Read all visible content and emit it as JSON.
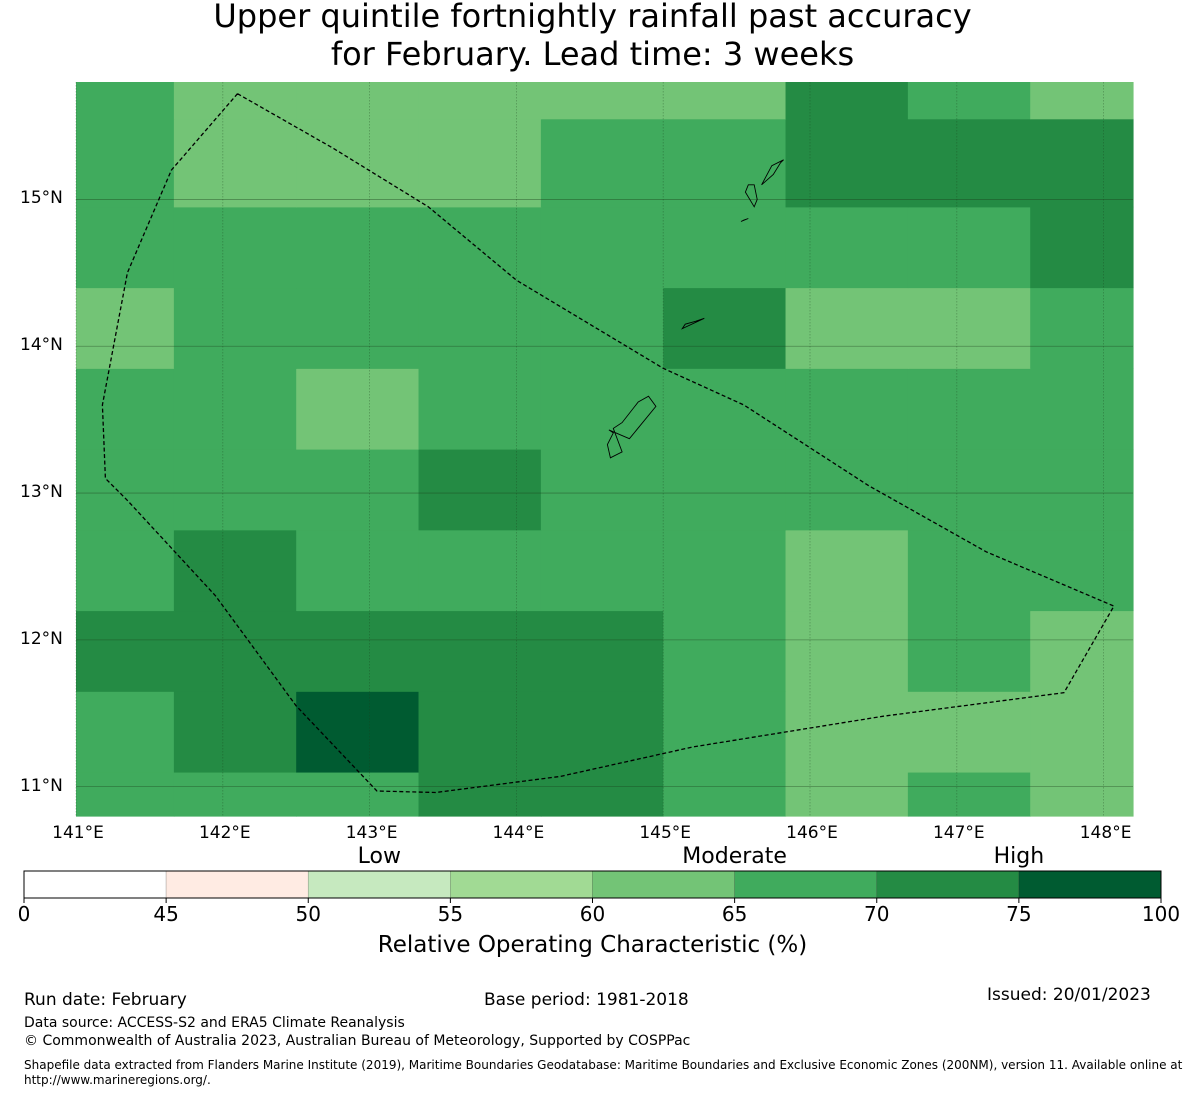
{
  "title": {
    "line1": "Upper quintile fortnightly rainfall past accuracy",
    "line2": "for February. Lead time: 3 weeks"
  },
  "map": {
    "extent": {
      "lon_min": 141.0,
      "lon_max": 148.2,
      "lat_min": 10.8,
      "lat_max": 15.8
    },
    "grid_lon_edges": [
      141.0,
      141.6667,
      142.5,
      143.3333,
      144.1667,
      145.0,
      145.8333,
      146.6667,
      147.5,
      148.2
    ],
    "grid_lat_edges": [
      10.8,
      11.1,
      11.65,
      12.2,
      12.75,
      13.3,
      13.85,
      14.4,
      14.95,
      15.55,
      15.8
    ],
    "roc_values": [
      [
        67.5,
        67.5,
        67.5,
        72.5,
        72.5,
        67.5,
        62.5,
        67.5,
        62.5
      ],
      [
        67.5,
        72.5,
        77.5,
        72.5,
        72.5,
        67.5,
        62.5,
        62.5,
        62.5
      ],
      [
        72.5,
        72.5,
        72.5,
        72.5,
        72.5,
        67.5,
        62.5,
        67.5,
        62.5
      ],
      [
        67.5,
        72.5,
        67.5,
        67.5,
        67.5,
        67.5,
        62.5,
        67.5,
        67.5
      ],
      [
        67.5,
        67.5,
        67.5,
        72.5,
        67.5,
        67.5,
        67.5,
        67.5,
        67.5
      ],
      [
        67.5,
        67.5,
        62.5,
        67.5,
        67.5,
        67.5,
        67.5,
        67.5,
        67.5
      ],
      [
        62.5,
        67.5,
        67.5,
        67.5,
        67.5,
        72.5,
        62.5,
        62.5,
        67.5
      ],
      [
        67.5,
        67.5,
        67.5,
        67.5,
        67.5,
        67.5,
        67.5,
        67.5,
        72.5
      ],
      [
        67.5,
        62.5,
        62.5,
        62.5,
        67.5,
        67.5,
        72.5,
        72.5,
        72.5
      ],
      [
        67.5,
        62.5,
        62.5,
        62.5,
        62.5,
        62.5,
        72.5,
        67.5,
        62.5
      ]
    ],
    "lat_ticks": [
      {
        "value": 15,
        "label": "15°N"
      },
      {
        "value": 14,
        "label": "14°N"
      },
      {
        "value": 13,
        "label": "13°N"
      },
      {
        "value": 12,
        "label": "12°N"
      },
      {
        "value": 11,
        "label": "11°N"
      }
    ],
    "lon_ticks": [
      {
        "value": 141,
        "label": "141°E"
      },
      {
        "value": 142,
        "label": "142°E"
      },
      {
        "value": 143,
        "label": "143°E"
      },
      {
        "value": 144,
        "label": "144°E"
      },
      {
        "value": 145,
        "label": "145°E"
      },
      {
        "value": 146,
        "label": "146°E"
      },
      {
        "value": 147,
        "label": "147°E"
      },
      {
        "value": 148,
        "label": "148°E"
      }
    ],
    "eez_boundary": [
      [
        142.1,
        15.72
      ],
      [
        142.75,
        15.35
      ],
      [
        143.4,
        14.95
      ],
      [
        144.0,
        14.45
      ],
      [
        145.0,
        13.85
      ],
      [
        145.55,
        13.6
      ],
      [
        146.4,
        13.05
      ],
      [
        147.2,
        12.6
      ],
      [
        148.07,
        12.23
      ],
      [
        147.73,
        11.64
      ],
      [
        146.5,
        11.48
      ],
      [
        145.2,
        11.27
      ],
      [
        144.3,
        11.07
      ],
      [
        143.45,
        10.96
      ],
      [
        143.05,
        10.97
      ],
      [
        142.5,
        11.55
      ],
      [
        141.95,
        12.3
      ],
      [
        141.35,
        12.95
      ],
      [
        141.2,
        13.1
      ],
      [
        141.18,
        13.6
      ],
      [
        141.35,
        14.5
      ],
      [
        141.65,
        15.2
      ],
      [
        142.1,
        15.72
      ]
    ],
    "islands": [
      {
        "name": "Guam",
        "coords": [
          [
            144.63,
            13.43
          ],
          [
            144.77,
            13.37
          ],
          [
            144.95,
            13.59
          ],
          [
            144.9,
            13.66
          ],
          [
            144.83,
            13.62
          ],
          [
            144.72,
            13.48
          ],
          [
            144.66,
            13.44
          ],
          [
            144.72,
            13.28
          ],
          [
            144.64,
            13.24
          ],
          [
            144.62,
            13.33
          ],
          [
            144.66,
            13.41
          ],
          [
            144.63,
            13.43
          ]
        ]
      },
      {
        "name": "Rota",
        "coords": [
          [
            145.13,
            14.12
          ],
          [
            145.28,
            14.19
          ],
          [
            145.22,
            14.17
          ],
          [
            145.15,
            14.15
          ],
          [
            145.13,
            14.12
          ]
        ]
      },
      {
        "name": "Tinian",
        "coords": [
          [
            145.56,
            15.05
          ],
          [
            145.62,
            14.95
          ],
          [
            145.64,
            15.0
          ],
          [
            145.62,
            15.1
          ],
          [
            145.58,
            15.1
          ],
          [
            145.56,
            15.05
          ]
        ]
      },
      {
        "name": "Saipan",
        "coords": [
          [
            145.67,
            15.1
          ],
          [
            145.75,
            15.17
          ],
          [
            145.8,
            15.25
          ],
          [
            145.82,
            15.27
          ],
          [
            145.74,
            15.23
          ],
          [
            145.67,
            15.1
          ]
        ]
      },
      {
        "name": "Aguijan",
        "coords": [
          [
            145.53,
            14.85
          ],
          [
            145.58,
            14.87
          ],
          [
            145.55,
            14.86
          ],
          [
            145.53,
            14.85
          ]
        ]
      }
    ]
  },
  "colorbar": {
    "category_labels": [
      {
        "text": "Low",
        "value": 52.5
      },
      {
        "text": "Moderate",
        "value": 65
      },
      {
        "text": "High",
        "value": 75
      }
    ],
    "bins": [
      {
        "from": 0,
        "to": 45,
        "color": "#ffffff"
      },
      {
        "from": 45,
        "to": 50,
        "color": "#ffebe3"
      },
      {
        "from": 50,
        "to": 55,
        "color": "#c6e9bf"
      },
      {
        "from": 55,
        "to": 60,
        "color": "#a1da94"
      },
      {
        "from": 60,
        "to": 65,
        "color": "#73c476"
      },
      {
        "from": 65,
        "to": 70,
        "color": "#40ab5d"
      },
      {
        "from": 70,
        "to": 75,
        "color": "#248b44"
      },
      {
        "from": 75,
        "to": 100,
        "color": "#005b31"
      }
    ],
    "ticks": [
      "0",
      "45",
      "50",
      "55",
      "60",
      "65",
      "70",
      "75",
      "100"
    ],
    "title": "Relative Operating Characteristic (%)"
  },
  "footer": {
    "run_date": "Run date: February",
    "base_period": "Base period: 1981-2018",
    "issued": "Issued: 20/01/2023",
    "data_source": "Data source: ACCESS-S2 and ERA5 Climate Reanalysis",
    "copyright": "© Commonwealth of Australia 2023, Australian Bureau of Meteorology, Supported by COSPPac",
    "shapefile_note": "Shapefile data extracted from Flanders Marine Institute (2019), Maritime Boundaries Geodatabase: Maritime Boundaries and Exclusive Economic Zones (200NM), version 11. Available online at http://www.marineregions.org/."
  }
}
